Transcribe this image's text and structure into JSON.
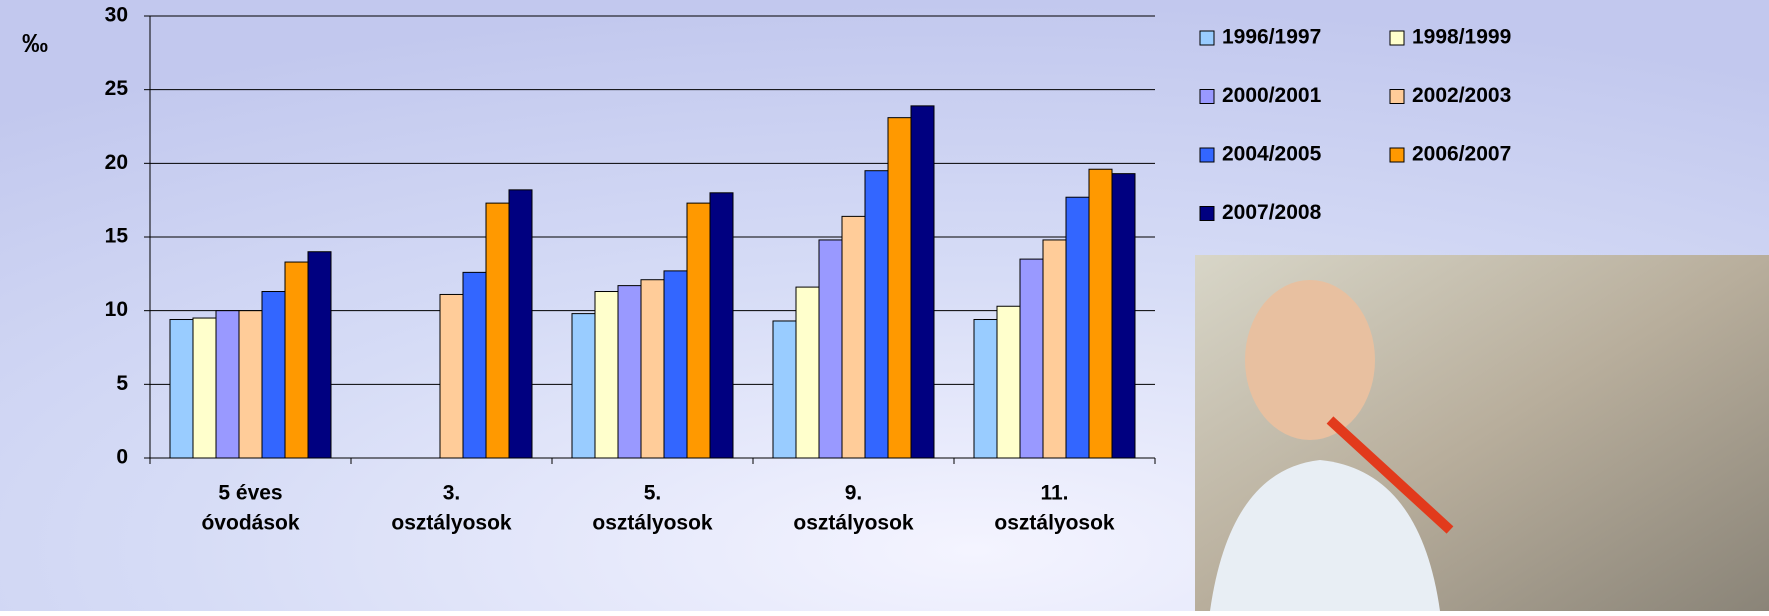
{
  "chart_data": {
    "type": "bar",
    "y_label": "‰",
    "categories": [
      [
        "5 éves",
        "óvodások"
      ],
      [
        "3.",
        "osztályosok"
      ],
      [
        "5.",
        "osztályosok"
      ],
      [
        "9.",
        "osztályosok"
      ],
      [
        "11.",
        "osztályosok"
      ]
    ],
    "series": [
      {
        "name": "1996/1997",
        "color": "#99ccff",
        "values": [
          9.4,
          null,
          9.8,
          9.3,
          9.4
        ]
      },
      {
        "name": "1998/1999",
        "color": "#ffffcc",
        "values": [
          9.5,
          null,
          11.3,
          11.6,
          10.3
        ]
      },
      {
        "name": "2000/2001",
        "color": "#9999ff",
        "values": [
          10.0,
          null,
          11.7,
          14.8,
          13.5
        ]
      },
      {
        "name": "2002/2003",
        "color": "#ffcc99",
        "values": [
          10.0,
          11.1,
          12.1,
          16.4,
          14.8
        ]
      },
      {
        "name": "2004/2005",
        "color": "#3366ff",
        "values": [
          11.3,
          12.6,
          12.7,
          19.5,
          17.7
        ]
      },
      {
        "name": "2006/2007",
        "color": "#ff9900",
        "values": [
          13.3,
          17.3,
          17.3,
          23.1,
          19.6
        ]
      },
      {
        "name": "2007/2008",
        "color": "#000080",
        "values": [
          14.0,
          18.2,
          18.0,
          23.9,
          19.3
        ]
      }
    ],
    "ylim": [
      0,
      30
    ],
    "yticks": [
      0,
      5,
      10,
      15,
      20,
      25,
      30
    ],
    "grid": true
  }
}
